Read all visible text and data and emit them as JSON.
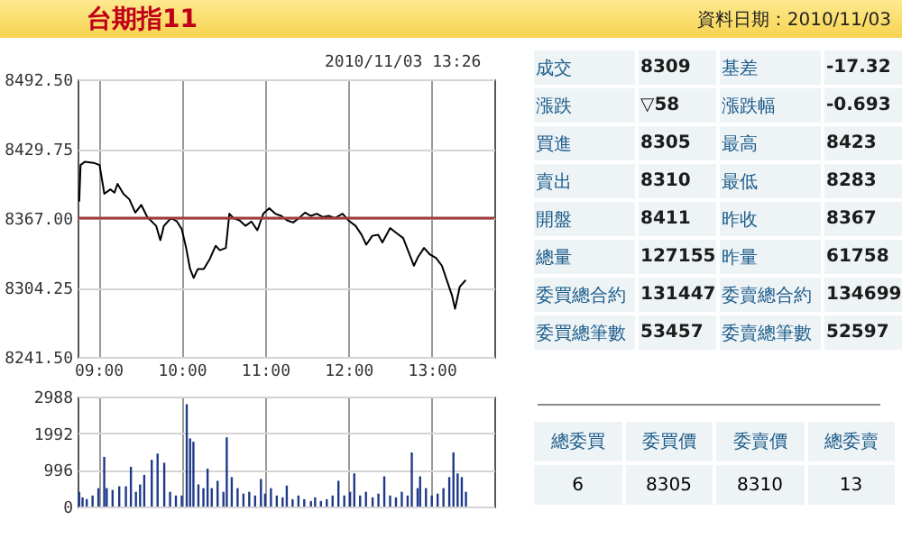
{
  "chart_data": [
    {
      "type": "line",
      "title": "台期指11",
      "annotations": [
        "資料日期：2010/11/03",
        "2010/11/03 13:26"
      ],
      "x": [
        8.77,
        8.786,
        8.836,
        8.943,
        9.014,
        9.071,
        9.143,
        9.193,
        9.229,
        9.3,
        9.371,
        9.443,
        9.514,
        9.586,
        9.693,
        9.743,
        9.786,
        9.871,
        9.943,
        10.0,
        10.05,
        10.1,
        10.143,
        10.193,
        10.264,
        10.336,
        10.407,
        10.457,
        10.529,
        10.571,
        10.621,
        10.693,
        10.764,
        10.836,
        10.907,
        10.979,
        11.05,
        11.121,
        11.193,
        11.264,
        11.336,
        11.407,
        11.479,
        11.55,
        11.621,
        11.693,
        11.764,
        11.836,
        11.929,
        12.0,
        12.086,
        12.157,
        12.214,
        12.286,
        12.357,
        12.407,
        12.5,
        12.586,
        12.657,
        12.729,
        12.786,
        12.836,
        12.907,
        12.979,
        13.05,
        13.121,
        13.193,
        13.243,
        13.279,
        13.336,
        13.407
      ],
      "series": [
        {
          "color": "#000000",
          "values": [
            8382,
            8415,
            8418,
            8417,
            8415,
            8389,
            8393,
            8390,
            8398,
            8389,
            8384,
            8372,
            8379,
            8368,
            8360,
            8347,
            8360,
            8367,
            8364,
            8357,
            8341,
            8321,
            8313,
            8321,
            8321,
            8330,
            8342,
            8338,
            8340,
            8371,
            8367,
            8365,
            8360,
            8364,
            8356,
            8371,
            8376,
            8371,
            8369,
            8365,
            8363,
            8367,
            8372,
            8369,
            8371,
            8368,
            8369,
            8367,
            8371,
            8365,
            8360,
            8352,
            8343,
            8351,
            8352,
            8345,
            8358,
            8353,
            8349,
            8335,
            8324,
            8332,
            8340,
            8334,
            8331,
            8324,
            8308,
            8297,
            8285,
            8305,
            8311
          ]
        }
      ],
      "xlim": [
        8.75,
        13.75
      ],
      "xticks": [
        {
          "value": 9,
          "label": "09:00"
        },
        {
          "value": 10,
          "label": "10:00"
        },
        {
          "value": 11,
          "label": "11:00"
        },
        {
          "value": 12,
          "label": "12:00"
        },
        {
          "value": 13,
          "label": "13:00"
        }
      ],
      "ylim": [
        8241.5,
        8492.5
      ],
      "yticks": [
        {
          "value": 8241.5,
          "label": "8241.50"
        },
        8304.25,
        {
          "value": 8367,
          "label": "8367.00"
        },
        8429.75,
        {
          "value": 8492.5,
          "label": "8492.50"
        }
      ],
      "ref_lines": [
        {
          "axis": "y",
          "value": 8367,
          "color": "#a03c3c"
        }
      ],
      "grid": true
    },
    {
      "type": "bar",
      "x": [
        8.77,
        8.81,
        8.86,
        8.93,
        9.0,
        9.07,
        9.1,
        9.17,
        9.25,
        9.33,
        9.39,
        9.45,
        9.5,
        9.55,
        9.64,
        9.71,
        9.79,
        9.86,
        9.93,
        10.0,
        10.06,
        10.1,
        10.14,
        10.2,
        10.26,
        10.31,
        10.36,
        10.43,
        10.5,
        10.54,
        10.6,
        10.67,
        10.74,
        10.81,
        10.88,
        10.95,
        11.0,
        11.07,
        11.14,
        11.21,
        11.26,
        11.33,
        11.4,
        11.47,
        11.55,
        11.6,
        11.67,
        11.74,
        11.81,
        11.88,
        11.95,
        12.02,
        12.07,
        12.14,
        12.21,
        12.29,
        12.36,
        12.43,
        12.5,
        12.57,
        12.64,
        12.71,
        12.76,
        12.83,
        12.86,
        12.93,
        13.0,
        13.07,
        13.14,
        13.21,
        13.26,
        13.31,
        13.36,
        13.41
      ],
      "series": [
        {
          "color": "#1f3a8a",
          "values": [
            400,
            250,
            200,
            300,
            500,
            1350,
            500,
            450,
            550,
            550,
            1080,
            400,
            600,
            860,
            1270,
            1440,
            1190,
            400,
            300,
            300,
            2780,
            1850,
            1760,
            600,
            500,
            1030,
            500,
            700,
            400,
            1880,
            800,
            500,
            350,
            400,
            300,
            750,
            350,
            500,
            300,
            250,
            570,
            200,
            300,
            200,
            150,
            250,
            150,
            200,
            300,
            700,
            300,
            400,
            900,
            300,
            400,
            250,
            350,
            820,
            300,
            250,
            400,
            300,
            1470,
            500,
            820,
            500,
            300,
            350,
            500,
            800,
            1470,
            900,
            800,
            400
          ]
        }
      ],
      "xlim": [
        8.75,
        13.75
      ],
      "xticks": [
        {
          "value": 9,
          "label": null
        },
        {
          "value": 10,
          "label": null
        },
        {
          "value": 11,
          "label": null
        },
        {
          "value": 12,
          "label": null
        },
        {
          "value": 13,
          "label": null
        }
      ],
      "ylim": [
        0,
        2988
      ],
      "yticks": [
        0,
        996,
        1992,
        2988
      ],
      "tick_labels": "y",
      "grid": true
    },
    {
      "type": "other",
      "cell_labels": [
        [
          "成交",
          "8309",
          "基差",
          "-17.32"
        ],
        [
          "漲跌",
          "▽58",
          "漲跌幅",
          "-0.693"
        ],
        [
          "買進",
          "8305",
          "最高",
          "8423"
        ],
        [
          "賣出",
          "8310",
          "最低",
          "8283"
        ],
        [
          "開盤",
          "8411",
          "昨收",
          "8367"
        ],
        [
          "總量",
          "127155",
          "昨量",
          "61758"
        ],
        [
          "委買總合約",
          "131447",
          "委賣總合約",
          "134699"
        ],
        [
          "委買總筆數",
          "53457",
          "委賣總筆數",
          "52597"
        ]
      ]
    },
    {
      "type": "other",
      "cell_labels": [
        [
          "總委買",
          "委買價",
          "委賣價",
          "總委賣"
        ],
        [
          "6",
          "8305",
          "8310",
          "13"
        ]
      ]
    }
  ]
}
